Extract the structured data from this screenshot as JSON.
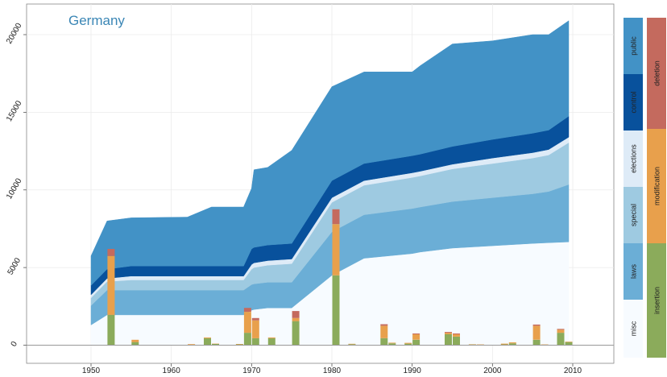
{
  "chart_data": {
    "type": "area",
    "title": "Germany",
    "xlabel": "",
    "ylabel": "",
    "xlim": [
      1942,
      2015
    ],
    "ylim": [
      -300,
      22000
    ],
    "x_ticks": [
      1950,
      1960,
      1970,
      1980,
      1990,
      2000,
      2010
    ],
    "y_ticks": [
      0,
      5000,
      10000,
      15000,
      20000
    ],
    "grid": true,
    "legend_position": "right",
    "colors": {
      "misc": "#f7fbff",
      "laws": "#6baed6",
      "special": "#9ecae1",
      "elections": "#deebf7",
      "control": "#08519c",
      "public": "#4292c6",
      "insertion": "#8bab5b",
      "modification": "#e8a04c",
      "deletion": "#c46a5e"
    },
    "x": [
      1950,
      1952,
      1955,
      1962,
      1965,
      1969,
      1970,
      1970.3,
      1972,
      1975,
      1980,
      1984,
      1990,
      1991,
      1995,
      2000,
      2005,
      2007,
      2009.5
    ],
    "stack_series": [
      {
        "name": "misc",
        "values": [
          1300,
          1950,
          1950,
          1950,
          1950,
          1950,
          2250,
          2300,
          2400,
          2400,
          4500,
          5600,
          5900,
          6000,
          6250,
          6400,
          6550,
          6600,
          6650
        ]
      },
      {
        "name": "laws",
        "values": [
          1250,
          1600,
          1600,
          1600,
          1600,
          1600,
          1650,
          1650,
          1650,
          1650,
          2800,
          2800,
          2900,
          2900,
          3000,
          3100,
          3200,
          3300,
          3700
        ]
      },
      {
        "name": "special",
        "values": [
          500,
          550,
          650,
          650,
          650,
          650,
          1000,
          1050,
          1100,
          1200,
          1900,
          1900,
          2000,
          2000,
          2100,
          2200,
          2300,
          2350,
          2700
        ]
      },
      {
        "name": "elections",
        "values": [
          200,
          200,
          250,
          250,
          250,
          250,
          300,
          300,
          300,
          300,
          300,
          300,
          300,
          300,
          300,
          350,
          350,
          350,
          350
        ]
      },
      {
        "name": "control",
        "values": [
          600,
          600,
          650,
          650,
          650,
          650,
          1000,
          1000,
          1000,
          1000,
          1100,
          1100,
          1100,
          1100,
          1150,
          1200,
          1250,
          1250,
          1350
        ]
      },
      {
        "name": "public",
        "values": [
          1900,
          3100,
          3100,
          3150,
          3800,
          3800,
          3900,
          5000,
          5000,
          6000,
          6050,
          5900,
          5400,
          5700,
          6600,
          6350,
          6350,
          6150,
          6150
        ]
      }
    ],
    "bar_series": [
      {
        "name": "insertion",
        "x": [
          1952.5,
          1955.5,
          1962.5,
          1964.5,
          1965.5,
          1968.5,
          1969.5,
          1970.5,
          1972.5,
          1975.5,
          1980.5,
          1982.5,
          1986.5,
          1987.5,
          1989.5,
          1990.5,
          1994.5,
          1995.5,
          1997.5,
          1998.5,
          2001.5,
          2002.5,
          2005.5,
          2006.5,
          2008.5,
          2009.5
        ],
        "values": [
          1950,
          200,
          30,
          450,
          80,
          50,
          800,
          450,
          450,
          1550,
          4500,
          60,
          450,
          120,
          100,
          350,
          700,
          550,
          40,
          30,
          50,
          120,
          350,
          30,
          800,
          200
        ]
      },
      {
        "name": "modification",
        "x": [
          1952.5,
          1955.5,
          1962.5,
          1964.5,
          1965.5,
          1968.5,
          1969.5,
          1970.5,
          1972.5,
          1975.5,
          1980.5,
          1982.5,
          1986.5,
          1987.5,
          1989.5,
          1990.5,
          1994.5,
          1995.5,
          1997.5,
          1998.5,
          2001.5,
          2002.5,
          2005.5,
          2006.5,
          2008.5,
          2009.5
        ],
        "values": [
          3800,
          150,
          40,
          50,
          20,
          30,
          1350,
          1150,
          50,
          200,
          3300,
          30,
          800,
          40,
          50,
          350,
          100,
          150,
          20,
          20,
          50,
          60,
          900,
          20,
          200,
          30
        ]
      },
      {
        "name": "deletion",
        "x": [
          1952.5,
          1955.5,
          1962.5,
          1964.5,
          1965.5,
          1968.5,
          1969.5,
          1970.5,
          1972.5,
          1975.5,
          1980.5,
          1982.5,
          1986.5,
          1987.5,
          1989.5,
          1990.5,
          1994.5,
          1995.5,
          1997.5,
          1998.5,
          2001.5,
          2002.5,
          2005.5,
          2006.5,
          2008.5,
          2009.5
        ],
        "values": [
          450,
          0,
          0,
          0,
          0,
          0,
          250,
          150,
          0,
          450,
          950,
          0,
          100,
          0,
          0,
          50,
          50,
          50,
          0,
          0,
          0,
          0,
          80,
          0,
          50,
          0
        ]
      }
    ],
    "legend": {
      "left": [
        {
          "key": "public",
          "label": "public"
        },
        {
          "key": "control",
          "label": "control"
        },
        {
          "key": "elections",
          "label": "elections"
        },
        {
          "key": "special",
          "label": "special"
        },
        {
          "key": "laws",
          "label": "laws"
        },
        {
          "key": "misc",
          "label": "misc"
        }
      ],
      "right": [
        {
          "key": "deletion",
          "label": "deletion"
        },
        {
          "key": "modification",
          "label": "modification"
        },
        {
          "key": "insertion",
          "label": "insertion"
        }
      ]
    }
  }
}
